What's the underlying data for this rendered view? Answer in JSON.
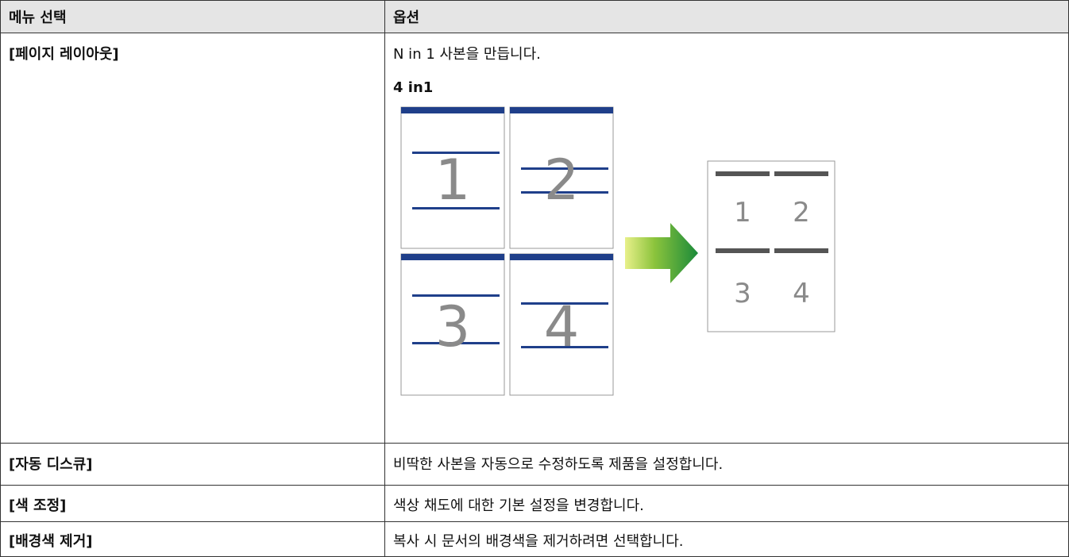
{
  "table": {
    "header": [
      "메뉴 선택",
      "옵션"
    ],
    "rows": [
      [
        "[페이지 레이아웃]",
        "N in 1 사본을 만듭니다."
      ],
      [
        "[자동 디스큐]",
        "비딱한 사본을 자동으로 수정하도록 제품을 설정합니다."
      ],
      [
        "[색 조정]",
        "색상 채도에 대한 기본 설정을 변경합니다."
      ],
      [
        "[배경색 제거]",
        "복사 시 문서의 배경색을 제거하려면 선택합니다."
      ]
    ]
  },
  "figure": {
    "caption": "4 in1",
    "page_numbers": [
      "1",
      "2",
      "3",
      "4"
    ]
  }
}
